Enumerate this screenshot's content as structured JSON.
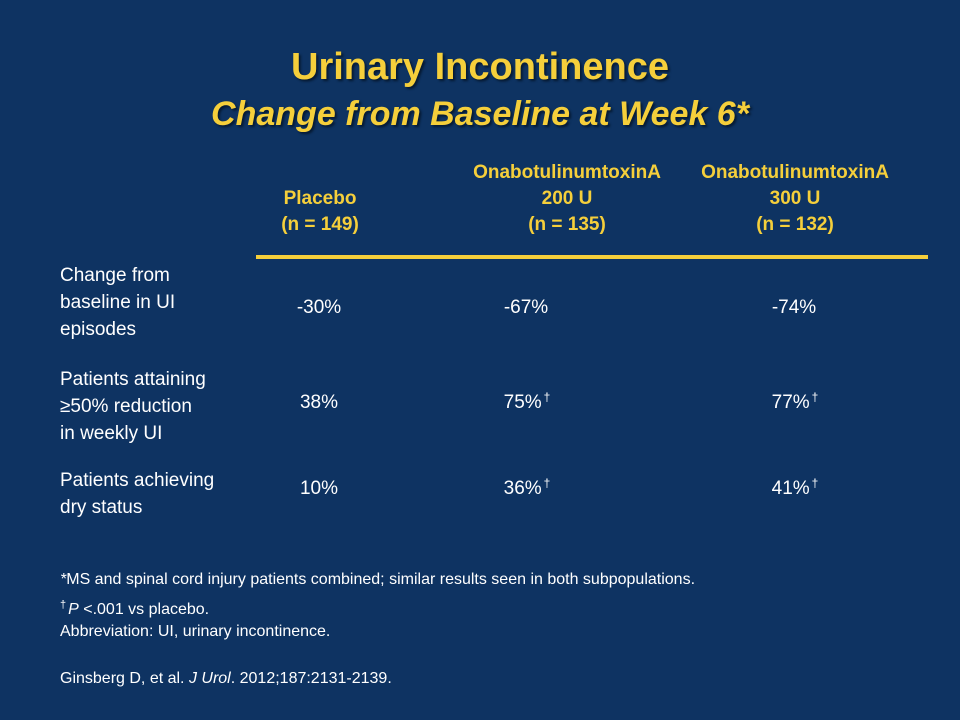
{
  "title": "Urinary Incontinence",
  "subtitle": "Change from Baseline at Week 6*",
  "colors": {
    "background": "#0e3362",
    "accent": "#f5cf3b",
    "text": "#ffffff"
  },
  "columns": [
    {
      "line1": "",
      "line2": "Placebo",
      "line3": "(n = 149)"
    },
    {
      "line1": "OnabotulinumtoxinA",
      "line2": "200 U",
      "line3": "(n = 135)"
    },
    {
      "line1": "OnabotulinumtoxinA",
      "line2": "300 U",
      "line3": "(n = 132)"
    }
  ],
  "rows": [
    {
      "label": [
        "Change from",
        "baseline in UI",
        "episodes"
      ],
      "cells": [
        {
          "value": "-30%",
          "mark": ""
        },
        {
          "value": "-67%",
          "mark": ""
        },
        {
          "value": "-74%",
          "mark": ""
        }
      ]
    },
    {
      "label": [
        "Patients attaining",
        "≥50% reduction",
        "in weekly UI"
      ],
      "cells": [
        {
          "value": "38%",
          "mark": ""
        },
        {
          "value": "75%",
          "mark": "†"
        },
        {
          "value": "77%",
          "mark": "†"
        }
      ]
    },
    {
      "label": [
        "Patients achieving",
        "dry status"
      ],
      "cells": [
        {
          "value": "10%",
          "mark": ""
        },
        {
          "value": "36%",
          "mark": "†"
        },
        {
          "value": "41%",
          "mark": "†"
        }
      ]
    }
  ],
  "footnotes": {
    "line1_mark": "*",
    "line1_text": "MS and spinal cord injury patients combined; similar results seen in both subpopulations.",
    "line2_mark": "†",
    "line2_p": "P",
    "line2_text": " <.001 vs placebo.",
    "line3": "Abbreviation: UI, urinary incontinence.",
    "citation_authors": "Ginsberg D, et al. ",
    "citation_journal": "J Urol",
    "citation_rest": ". 2012;187:2131-2139."
  }
}
